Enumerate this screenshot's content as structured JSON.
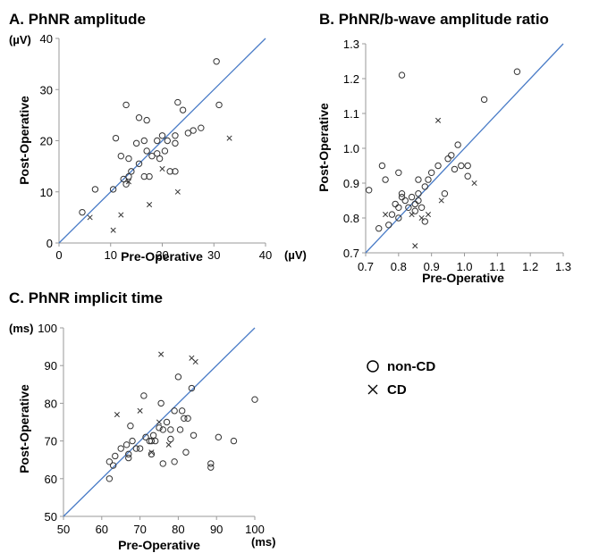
{
  "figure": {
    "legend": {
      "placement": "right of panel C",
      "items": [
        {
          "label": "non-CD",
          "marker": "circle"
        },
        {
          "label": "CD",
          "marker": "cross"
        }
      ]
    }
  },
  "colors": {
    "identity_line": "#4a7cc7",
    "axes": "#999999",
    "markers": "#333333"
  },
  "chart_data": [
    {
      "type": "scatter",
      "title": "A. PhNR amplitude",
      "xlabel": "Pre-Operative",
      "ylabel": "Post-Operative",
      "x_unit": "(µV)",
      "y_unit": "(µV)",
      "xlim": [
        0,
        40
      ],
      "ylim": [
        0,
        40
      ],
      "xticks": [
        "0",
        "10",
        "20",
        "30",
        "40"
      ],
      "yticks": [
        "0",
        "10",
        "20",
        "30",
        "40"
      ],
      "reference_line": "identity (y = x)",
      "grid": false,
      "series": [
        {
          "name": "non-CD",
          "marker": "circle",
          "points": [
            [
              4.5,
              6
            ],
            [
              7,
              10.5
            ],
            [
              10.5,
              10.5
            ],
            [
              11,
              20.5
            ],
            [
              12,
              17
            ],
            [
              12.5,
              12.5
            ],
            [
              13,
              27
            ],
            [
              13,
              11.5
            ],
            [
              13.5,
              13
            ],
            [
              13.5,
              16.5
            ],
            [
              14,
              14
            ],
            [
              15,
              19.5
            ],
            [
              15.5,
              24.5
            ],
            [
              15.5,
              15.5
            ],
            [
              16.5,
              20
            ],
            [
              16.5,
              13
            ],
            [
              17,
              24
            ],
            [
              17,
              18
            ],
            [
              17.5,
              13
            ],
            [
              18,
              17
            ],
            [
              19,
              20
            ],
            [
              19,
              17.5
            ],
            [
              19.5,
              16.5
            ],
            [
              20,
              21
            ],
            [
              20.5,
              18
            ],
            [
              21,
              20
            ],
            [
              21.5,
              14
            ],
            [
              22.5,
              19.5
            ],
            [
              22.5,
              21
            ],
            [
              22.5,
              14
            ],
            [
              23,
              27.5
            ],
            [
              24,
              26
            ],
            [
              25,
              21.5
            ],
            [
              26,
              22
            ],
            [
              27.5,
              22.5
            ],
            [
              30.5,
              35.5
            ],
            [
              31,
              27
            ]
          ]
        },
        {
          "name": "CD",
          "marker": "cross",
          "points": [
            [
              6,
              5
            ],
            [
              10.5,
              2.5
            ],
            [
              12,
              5.5
            ],
            [
              13.5,
              12
            ],
            [
              17.5,
              7.5
            ],
            [
              20,
              14.5
            ],
            [
              23,
              10
            ],
            [
              33,
              20.5
            ]
          ]
        }
      ]
    },
    {
      "type": "scatter",
      "title": "B. PhNR/b-wave amplitude ratio",
      "xlabel": "Pre-Operative",
      "ylabel": "Post-Operative",
      "xlim": [
        0.7,
        1.3
      ],
      "ylim": [
        0.7,
        1.3
      ],
      "xticks": [
        "0.7",
        "0.8",
        "0.9",
        "1.0",
        "1.1",
        "1.2",
        "1.3"
      ],
      "yticks": [
        "0.7",
        "0.8",
        "0.9",
        "1.0",
        "1.1",
        "1.2",
        "1.3"
      ],
      "reference_line": "identity (y = x)",
      "grid": false,
      "series": [
        {
          "name": "non-CD",
          "marker": "circle",
          "points": [
            [
              0.71,
              0.88
            ],
            [
              0.74,
              0.77
            ],
            [
              0.75,
              0.95
            ],
            [
              0.76,
              0.91
            ],
            [
              0.77,
              0.78
            ],
            [
              0.78,
              0.81
            ],
            [
              0.79,
              0.84
            ],
            [
              0.8,
              0.8
            ],
            [
              0.8,
              0.83
            ],
            [
              0.8,
              0.93
            ],
            [
              0.81,
              0.86
            ],
            [
              0.81,
              0.87
            ],
            [
              0.81,
              1.21
            ],
            [
              0.82,
              0.85
            ],
            [
              0.83,
              0.83
            ],
            [
              0.84,
              0.86
            ],
            [
              0.85,
              0.84
            ],
            [
              0.85,
              0.82
            ],
            [
              0.86,
              0.85
            ],
            [
              0.86,
              0.87
            ],
            [
              0.86,
              0.91
            ],
            [
              0.87,
              0.83
            ],
            [
              0.88,
              0.79
            ],
            [
              0.88,
              0.89
            ],
            [
              0.89,
              0.91
            ],
            [
              0.9,
              0.93
            ],
            [
              0.92,
              0.95
            ],
            [
              0.94,
              0.87
            ],
            [
              0.95,
              0.97
            ],
            [
              0.96,
              0.98
            ],
            [
              0.97,
              0.94
            ],
            [
              0.98,
              1.01
            ],
            [
              0.99,
              0.95
            ],
            [
              1.01,
              0.92
            ],
            [
              1.01,
              0.95
            ],
            [
              1.06,
              1.14
            ],
            [
              1.16,
              1.22
            ]
          ]
        },
        {
          "name": "CD",
          "marker": "cross",
          "points": [
            [
              0.76,
              0.81
            ],
            [
              0.84,
              0.81
            ],
            [
              0.85,
              0.72
            ],
            [
              0.87,
              0.8
            ],
            [
              0.89,
              0.81
            ],
            [
              0.92,
              1.08
            ],
            [
              0.93,
              0.85
            ],
            [
              1.03,
              0.9
            ]
          ]
        }
      ]
    },
    {
      "type": "scatter",
      "title": "C. PhNR implicit time",
      "xlabel": "Pre-Operative",
      "ylabel": "Post-Operative",
      "x_unit": "(ms)",
      "y_unit": "(ms)",
      "xlim": [
        50,
        100
      ],
      "ylim": [
        50,
        100
      ],
      "xticks": [
        "50",
        "60",
        "70",
        "80",
        "90",
        "100"
      ],
      "yticks": [
        "50",
        "60",
        "70",
        "80",
        "90",
        "100"
      ],
      "reference_line": "identity (y = x)",
      "grid": false,
      "series": [
        {
          "name": "non-CD",
          "marker": "circle",
          "points": [
            [
              62,
              60
            ],
            [
              62,
              64.5
            ],
            [
              63,
              63.5
            ],
            [
              63.5,
              66
            ],
            [
              65,
              68
            ],
            [
              66.5,
              69
            ],
            [
              67,
              65.5
            ],
            [
              67,
              66.5
            ],
            [
              67.5,
              74
            ],
            [
              68,
              70
            ],
            [
              69,
              68
            ],
            [
              70,
              68
            ],
            [
              71,
              82
            ],
            [
              71.5,
              71
            ],
            [
              72.5,
              70
            ],
            [
              73,
              66.5
            ],
            [
              73,
              70
            ],
            [
              73.5,
              71.5
            ],
            [
              74,
              70
            ],
            [
              75,
              73.5
            ],
            [
              75.5,
              80
            ],
            [
              76,
              64
            ],
            [
              76,
              73
            ],
            [
              77,
              75
            ],
            [
              78,
              70.5
            ],
            [
              78,
              73
            ],
            [
              79,
              64.5
            ],
            [
              79,
              78
            ],
            [
              80,
              87
            ],
            [
              80.5,
              73
            ],
            [
              81,
              78
            ],
            [
              81.5,
              76
            ],
            [
              82,
              67
            ],
            [
              82.5,
              76
            ],
            [
              83.5,
              84
            ],
            [
              84,
              71.5
            ],
            [
              88.5,
              64
            ],
            [
              88.5,
              63
            ],
            [
              90.5,
              71
            ],
            [
              94.5,
              70
            ],
            [
              100,
              81
            ]
          ]
        },
        {
          "name": "CD",
          "marker": "cross",
          "points": [
            [
              64,
              77
            ],
            [
              70,
              78
            ],
            [
              73,
              67
            ],
            [
              75,
              75
            ],
            [
              75.5,
              93
            ],
            [
              77.5,
              69
            ],
            [
              83.5,
              92
            ],
            [
              84.5,
              91
            ]
          ]
        }
      ]
    }
  ]
}
